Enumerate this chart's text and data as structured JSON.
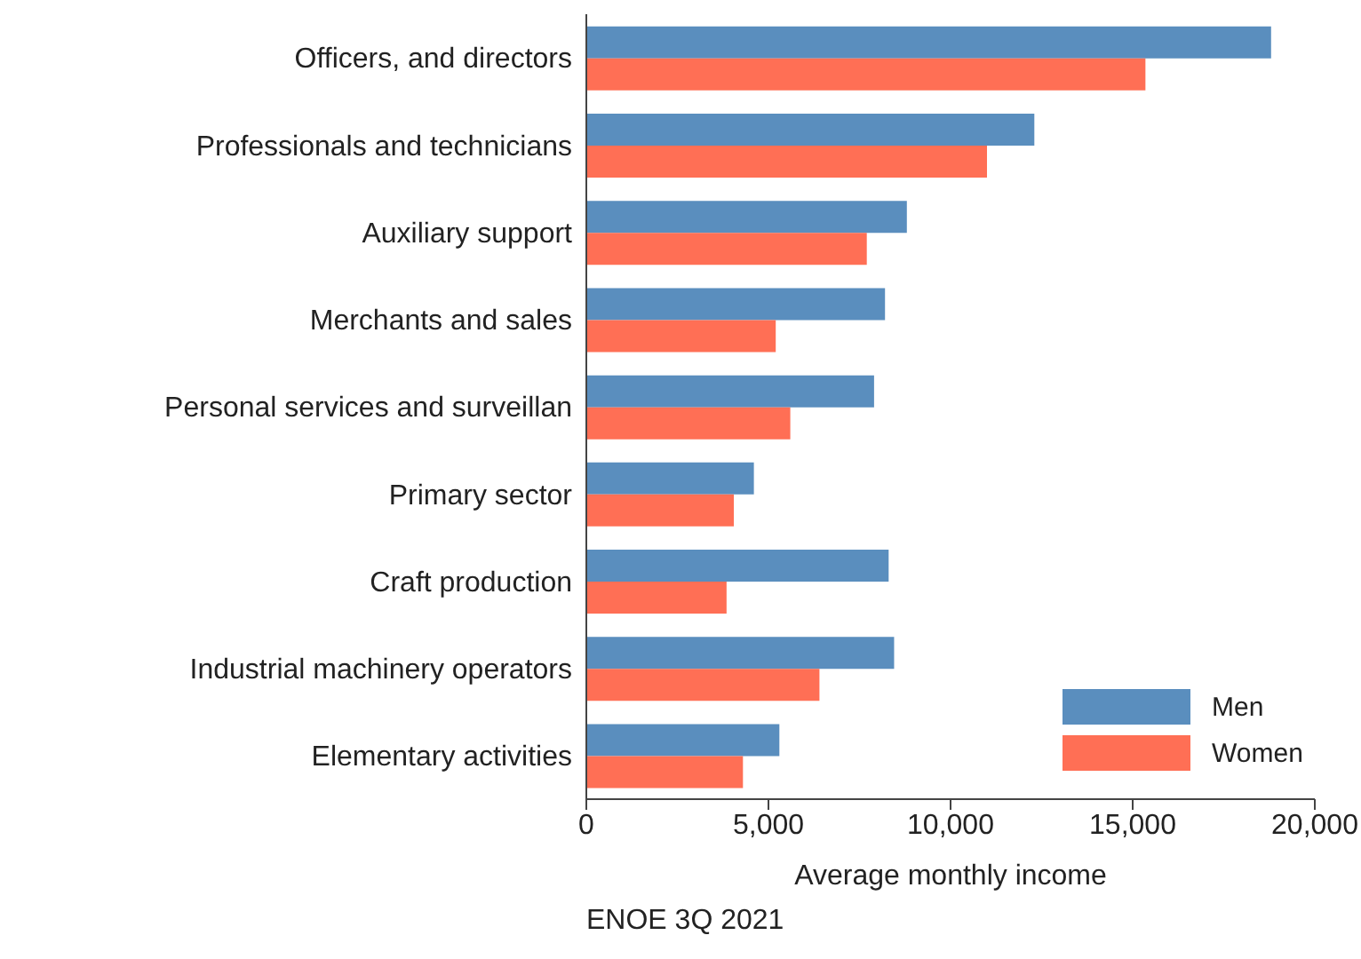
{
  "chart_data": {
    "type": "bar",
    "orientation": "horizontal",
    "categories": [
      "Officers, and directors",
      "Professionals and technicians",
      "Auxiliary support",
      "Merchants and sales",
      "Personal services and surveillan",
      "Primary sector",
      "Craft production",
      "Industrial machinery operators",
      "Elementary activities"
    ],
    "series": [
      {
        "name": "Men",
        "color": "#5a8ebe",
        "values": [
          18800,
          12300,
          8800,
          8200,
          7900,
          4600,
          8300,
          8450,
          5300
        ]
      },
      {
        "name": "Women",
        "color": "#ff6f55",
        "values": [
          15350,
          11000,
          7700,
          5200,
          5600,
          4050,
          3850,
          6400,
          4300
        ]
      }
    ],
    "xlim": [
      0,
      20000
    ],
    "xticks": [
      0,
      {
        "value": 5000,
        "label": "5,000"
      },
      {
        "value": 10000,
        "label": "10,000"
      },
      {
        "value": 15000,
        "label": "15,000"
      },
      {
        "value": 20000,
        "label": "20,000"
      }
    ],
    "xlabel": "Average monthly income",
    "annotations": [
      "ENOE 3Q 2021"
    ],
    "grid": false,
    "legend": "bottom right"
  }
}
